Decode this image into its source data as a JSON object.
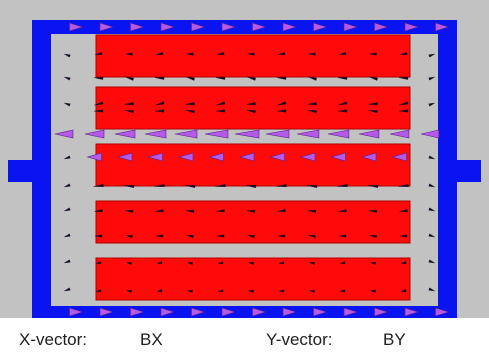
{
  "diagram": {
    "colors": {
      "background": "#c2c2c2",
      "frame": "#0a14f0",
      "bar": "#ff0a0a",
      "bar_edge": "#b00000",
      "arrow_fill": "#b45ae6",
      "arrow_edge": "#5a1e8c",
      "arrow_small": "#1a0a20"
    },
    "bar_count": 5
  },
  "footer": {
    "x_vector_label": "X-vector:",
    "x_vector_value": "BX",
    "y_vector_label": "Y-vector:",
    "y_vector_value": "BY"
  }
}
